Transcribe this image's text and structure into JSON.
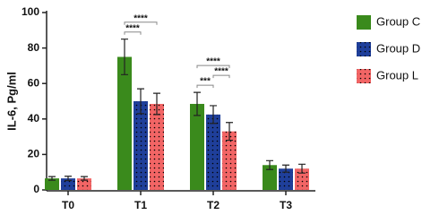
{
  "chart_data": {
    "type": "bar",
    "y_label": "IL-6, Pg/ml",
    "categories": [
      "T0",
      "T1",
      "T2",
      "T3"
    ],
    "series": [
      {
        "name": "Group C",
        "color": "#3a8a1c",
        "pattern": "solid",
        "values": [
          6.5,
          75,
          48.5,
          14
        ],
        "errors": [
          1,
          10,
          6.5,
          2.5
        ]
      },
      {
        "name": "Group D",
        "color": "#1f3f9a",
        "pattern": "dots",
        "values": [
          6.5,
          50,
          42.5,
          12
        ],
        "errors": [
          1.2,
          7,
          5,
          2
        ]
      },
      {
        "name": "Group L",
        "color": "#f26565",
        "pattern": "dots",
        "values": [
          6.5,
          48.5,
          33,
          12
        ],
        "errors": [
          1,
          6,
          5,
          2.5
        ]
      }
    ],
    "ylim": [
      0,
      100
    ],
    "yticks": [
      0,
      20,
      40,
      60,
      80,
      100
    ],
    "grid": false,
    "legend": "right",
    "annotations": [
      {
        "label": "****",
        "category": "T1",
        "between": [
          "Group C",
          "Group D"
        ]
      },
      {
        "label": "****",
        "category": "T1",
        "between": [
          "Group C",
          "Group L"
        ]
      },
      {
        "label": "***",
        "category": "T2",
        "between": [
          "Group C",
          "Group D"
        ]
      },
      {
        "label": "****",
        "category": "T2",
        "between": [
          "Group D",
          "Group L"
        ]
      },
      {
        "label": "****",
        "category": "T2",
        "between": [
          "Group C",
          "Group L"
        ]
      }
    ]
  }
}
